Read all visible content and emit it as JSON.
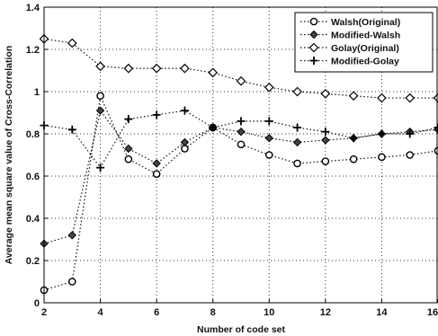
{
  "chart_data": {
    "type": "line",
    "xlabel": "Number of code set",
    "ylabel": "Average mean square value of Cross-Correlation",
    "xlim": [
      2,
      16
    ],
    "ylim": [
      0,
      1.4
    ],
    "xticks": [
      "2",
      "4",
      "6",
      "8",
      "10",
      "12",
      "14",
      "16"
    ],
    "yticks": [
      "0",
      "0.2",
      "0.4",
      "0.6",
      "0.8",
      "1",
      "1.2",
      "1.4"
    ],
    "grid": true,
    "legend_position": "top-right",
    "x": [
      2,
      3,
      4,
      5,
      6,
      7,
      8,
      9,
      10,
      11,
      12,
      13,
      14,
      15,
      16
    ],
    "series": [
      {
        "name": "Walsh(Original)",
        "marker": "circle",
        "values": [
          0.06,
          0.1,
          0.98,
          0.68,
          0.61,
          0.73,
          0.83,
          0.75,
          0.7,
          0.66,
          0.67,
          0.68,
          0.69,
          0.7,
          0.72
        ]
      },
      {
        "name": "Modified-Walsh",
        "marker": "diamond-filled",
        "values": [
          0.28,
          0.32,
          0.91,
          0.73,
          0.66,
          0.76,
          0.83,
          0.81,
          0.78,
          0.76,
          0.77,
          0.78,
          0.8,
          0.81,
          0.82
        ]
      },
      {
        "name": "Golay(Original)",
        "marker": "diamond-open",
        "values": [
          1.25,
          1.23,
          1.12,
          1.11,
          1.11,
          1.11,
          1.09,
          1.05,
          1.02,
          1.0,
          0.99,
          0.98,
          0.97,
          0.97,
          0.97
        ]
      },
      {
        "name": "Modified-Golay",
        "marker": "plus",
        "values": [
          0.84,
          0.82,
          0.64,
          0.87,
          0.89,
          0.91,
          0.83,
          0.86,
          0.86,
          0.83,
          0.81,
          0.78,
          0.8,
          0.8,
          0.83
        ]
      }
    ]
  }
}
